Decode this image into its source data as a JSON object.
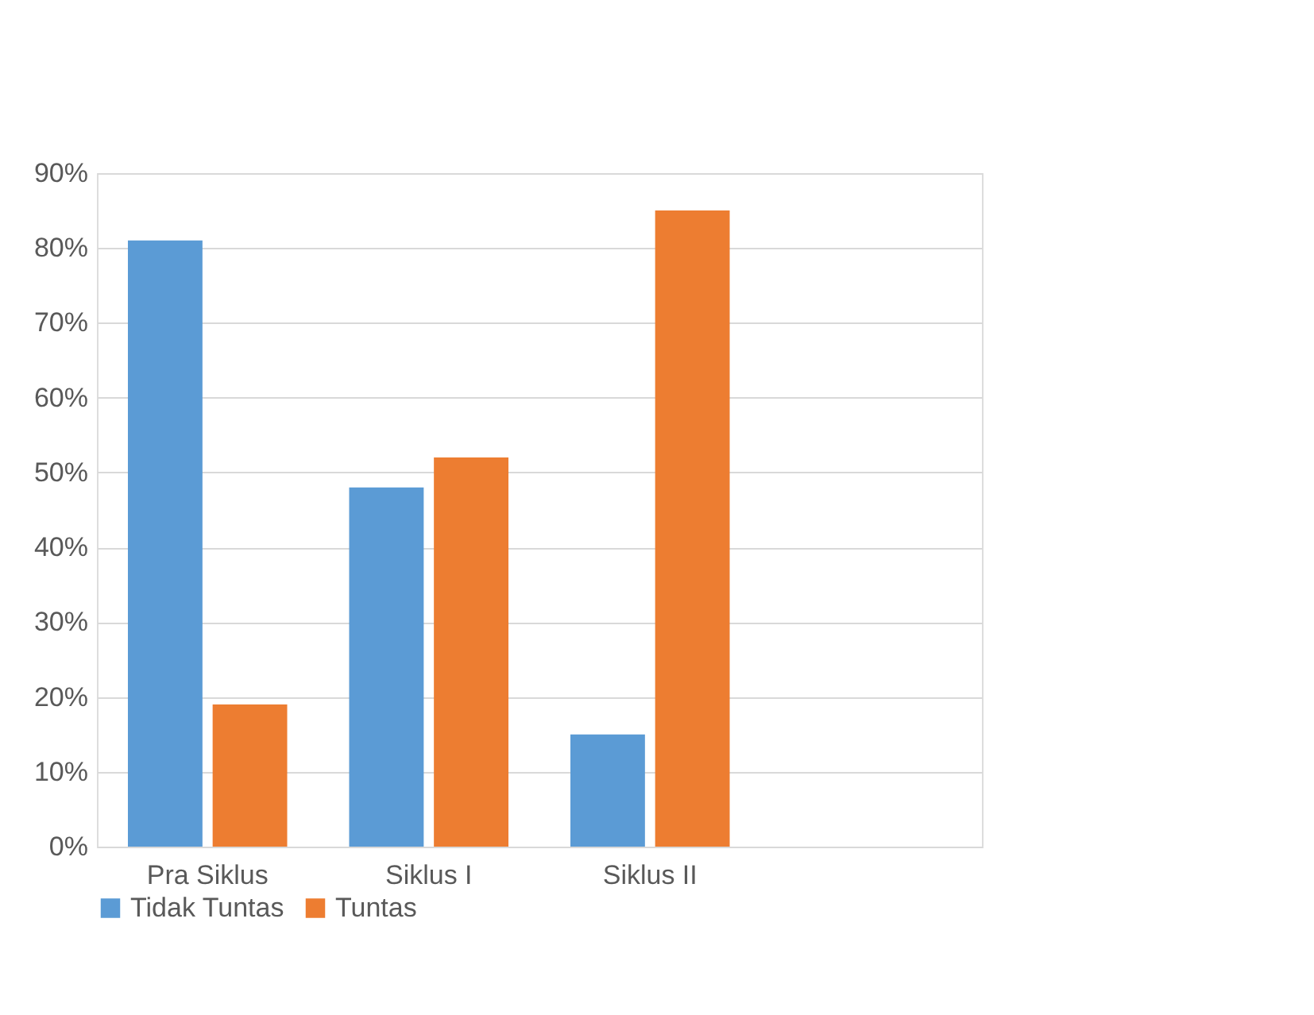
{
  "chart_data": {
    "type": "bar",
    "categories": [
      "Pra Siklus",
      "Siklus I",
      "Siklus II",
      null
    ],
    "series": [
      {
        "name": "Tidak Tuntas",
        "color": "#5b9bd5",
        "values": [
          81,
          48,
          15,
          null
        ]
      },
      {
        "name": "Tuntas",
        "color": "#ed7d31",
        "values": [
          19,
          52,
          85,
          null
        ]
      }
    ],
    "ylim": [
      0,
      90
    ],
    "yticks": [
      {
        "value": 0,
        "label": "0%"
      },
      {
        "value": 10,
        "label": "10%"
      },
      {
        "value": 20,
        "label": "20%"
      },
      {
        "value": 30,
        "label": "30%"
      },
      {
        "value": 40,
        "label": "40%"
      },
      {
        "value": 50,
        "label": "50%"
      },
      {
        "value": 60,
        "label": "60%"
      },
      {
        "value": 70,
        "label": "70%"
      },
      {
        "value": 80,
        "label": "80%"
      },
      {
        "value": 90,
        "label": "90%"
      }
    ],
    "grid": "y",
    "legend": "bottom"
  }
}
